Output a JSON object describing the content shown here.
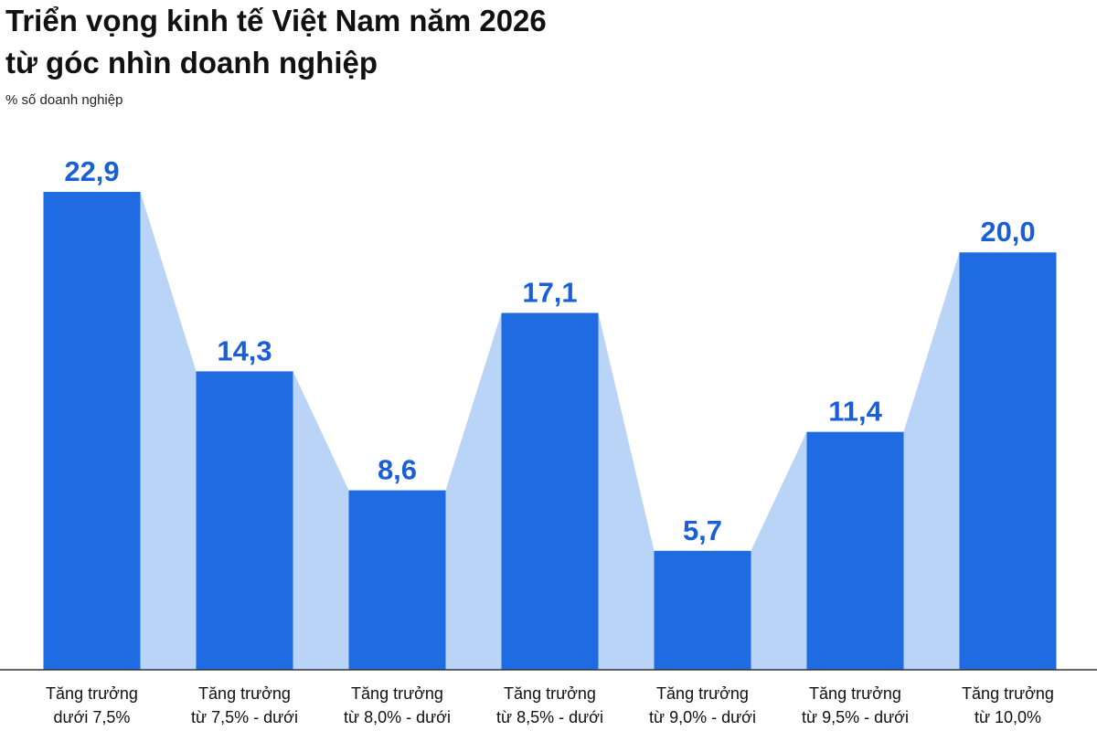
{
  "chart_data": {
    "type": "bar",
    "title": [
      "Triển vọng kinh tế Việt Nam năm 2026",
      "từ góc nhìn doanh nghiệp"
    ],
    "subtitle": "% số doanh nghiệp",
    "categories": [
      [
        "Tăng trưởng",
        "dưới 7,5%"
      ],
      [
        "Tăng trưởng",
        "từ 7,5% - dưới"
      ],
      [
        "Tăng trưởng",
        "từ 8,0% - dưới"
      ],
      [
        "Tăng trưởng",
        "từ 8,5% - dưới"
      ],
      [
        "Tăng trưởng",
        "từ 9,0% - dưới"
      ],
      [
        "Tăng trưởng",
        "từ 9,5% - dưới"
      ],
      [
        "Tăng trưởng",
        "từ 10,0%"
      ]
    ],
    "values": [
      22.9,
      14.3,
      8.6,
      17.1,
      5.7,
      11.4,
      20.0
    ],
    "value_labels": [
      "22,9",
      "14,3",
      "8,6",
      "17,1",
      "5,7",
      "11,4",
      "20,0"
    ],
    "color": "#1f6be2",
    "connector_color": "#b9d4f6"
  }
}
